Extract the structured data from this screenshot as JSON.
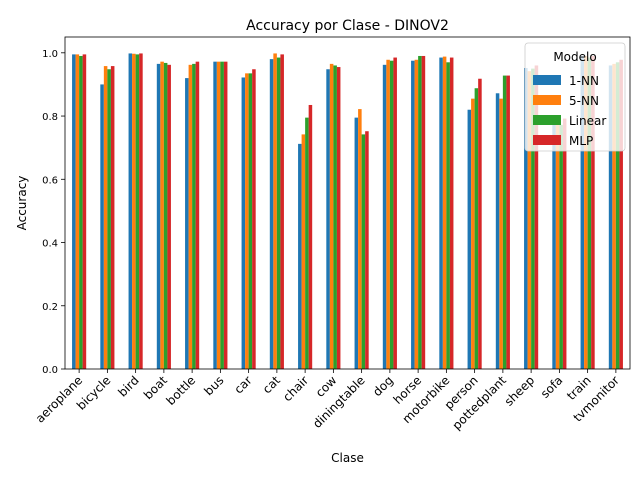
{
  "chart_data": {
    "type": "bar",
    "title": "Accuracy por Clase - DINOV2",
    "xlabel": "Clase",
    "ylabel": "Accuracy",
    "ylim": [
      0,
      1.05
    ],
    "yticks": [
      "0.0",
      "0.2",
      "0.4",
      "0.6",
      "0.8",
      "1.0"
    ],
    "categories": [
      "aeroplane",
      "bicycle",
      "bird",
      "boat",
      "bottle",
      "bus",
      "car",
      "cat",
      "chair",
      "cow",
      "diningtable",
      "dog",
      "horse",
      "motorbike",
      "person",
      "pottedplant",
      "sheep",
      "sofa",
      "train",
      "tvmonitor"
    ],
    "series": [
      {
        "name": "1-NN",
        "color": "#1f77b4",
        "values": [
          0.995,
          0.9,
          0.998,
          0.965,
          0.92,
          0.972,
          0.922,
          0.98,
          0.712,
          0.948,
          0.795,
          0.962,
          0.975,
          0.985,
          0.82,
          0.872,
          0.952,
          0.772,
          0.99,
          0.96
        ]
      },
      {
        "name": "5-NN",
        "color": "#ff7f0e",
        "values": [
          0.995,
          0.958,
          0.997,
          0.972,
          0.962,
          0.972,
          0.935,
          0.998,
          0.742,
          0.965,
          0.822,
          0.978,
          0.978,
          0.988,
          0.855,
          0.855,
          0.942,
          0.775,
          0.99,
          0.965
        ]
      },
      {
        "name": "Linear",
        "color": "#2ca02c",
        "values": [
          0.99,
          0.948,
          0.995,
          0.968,
          0.965,
          0.972,
          0.935,
          0.985,
          0.795,
          0.96,
          0.742,
          0.975,
          0.99,
          0.97,
          0.888,
          0.928,
          0.95,
          0.772,
          0.985,
          0.97
        ]
      },
      {
        "name": "MLP",
        "color": "#d62728",
        "values": [
          0.995,
          0.958,
          0.998,
          0.962,
          0.972,
          0.972,
          0.948,
          0.995,
          0.835,
          0.955,
          0.752,
          0.985,
          0.99,
          0.985,
          0.918,
          0.928,
          0.96,
          0.792,
          0.99,
          0.978
        ]
      }
    ],
    "legend": {
      "title": "Modelo",
      "placement": "top-right"
    },
    "grid": false
  }
}
